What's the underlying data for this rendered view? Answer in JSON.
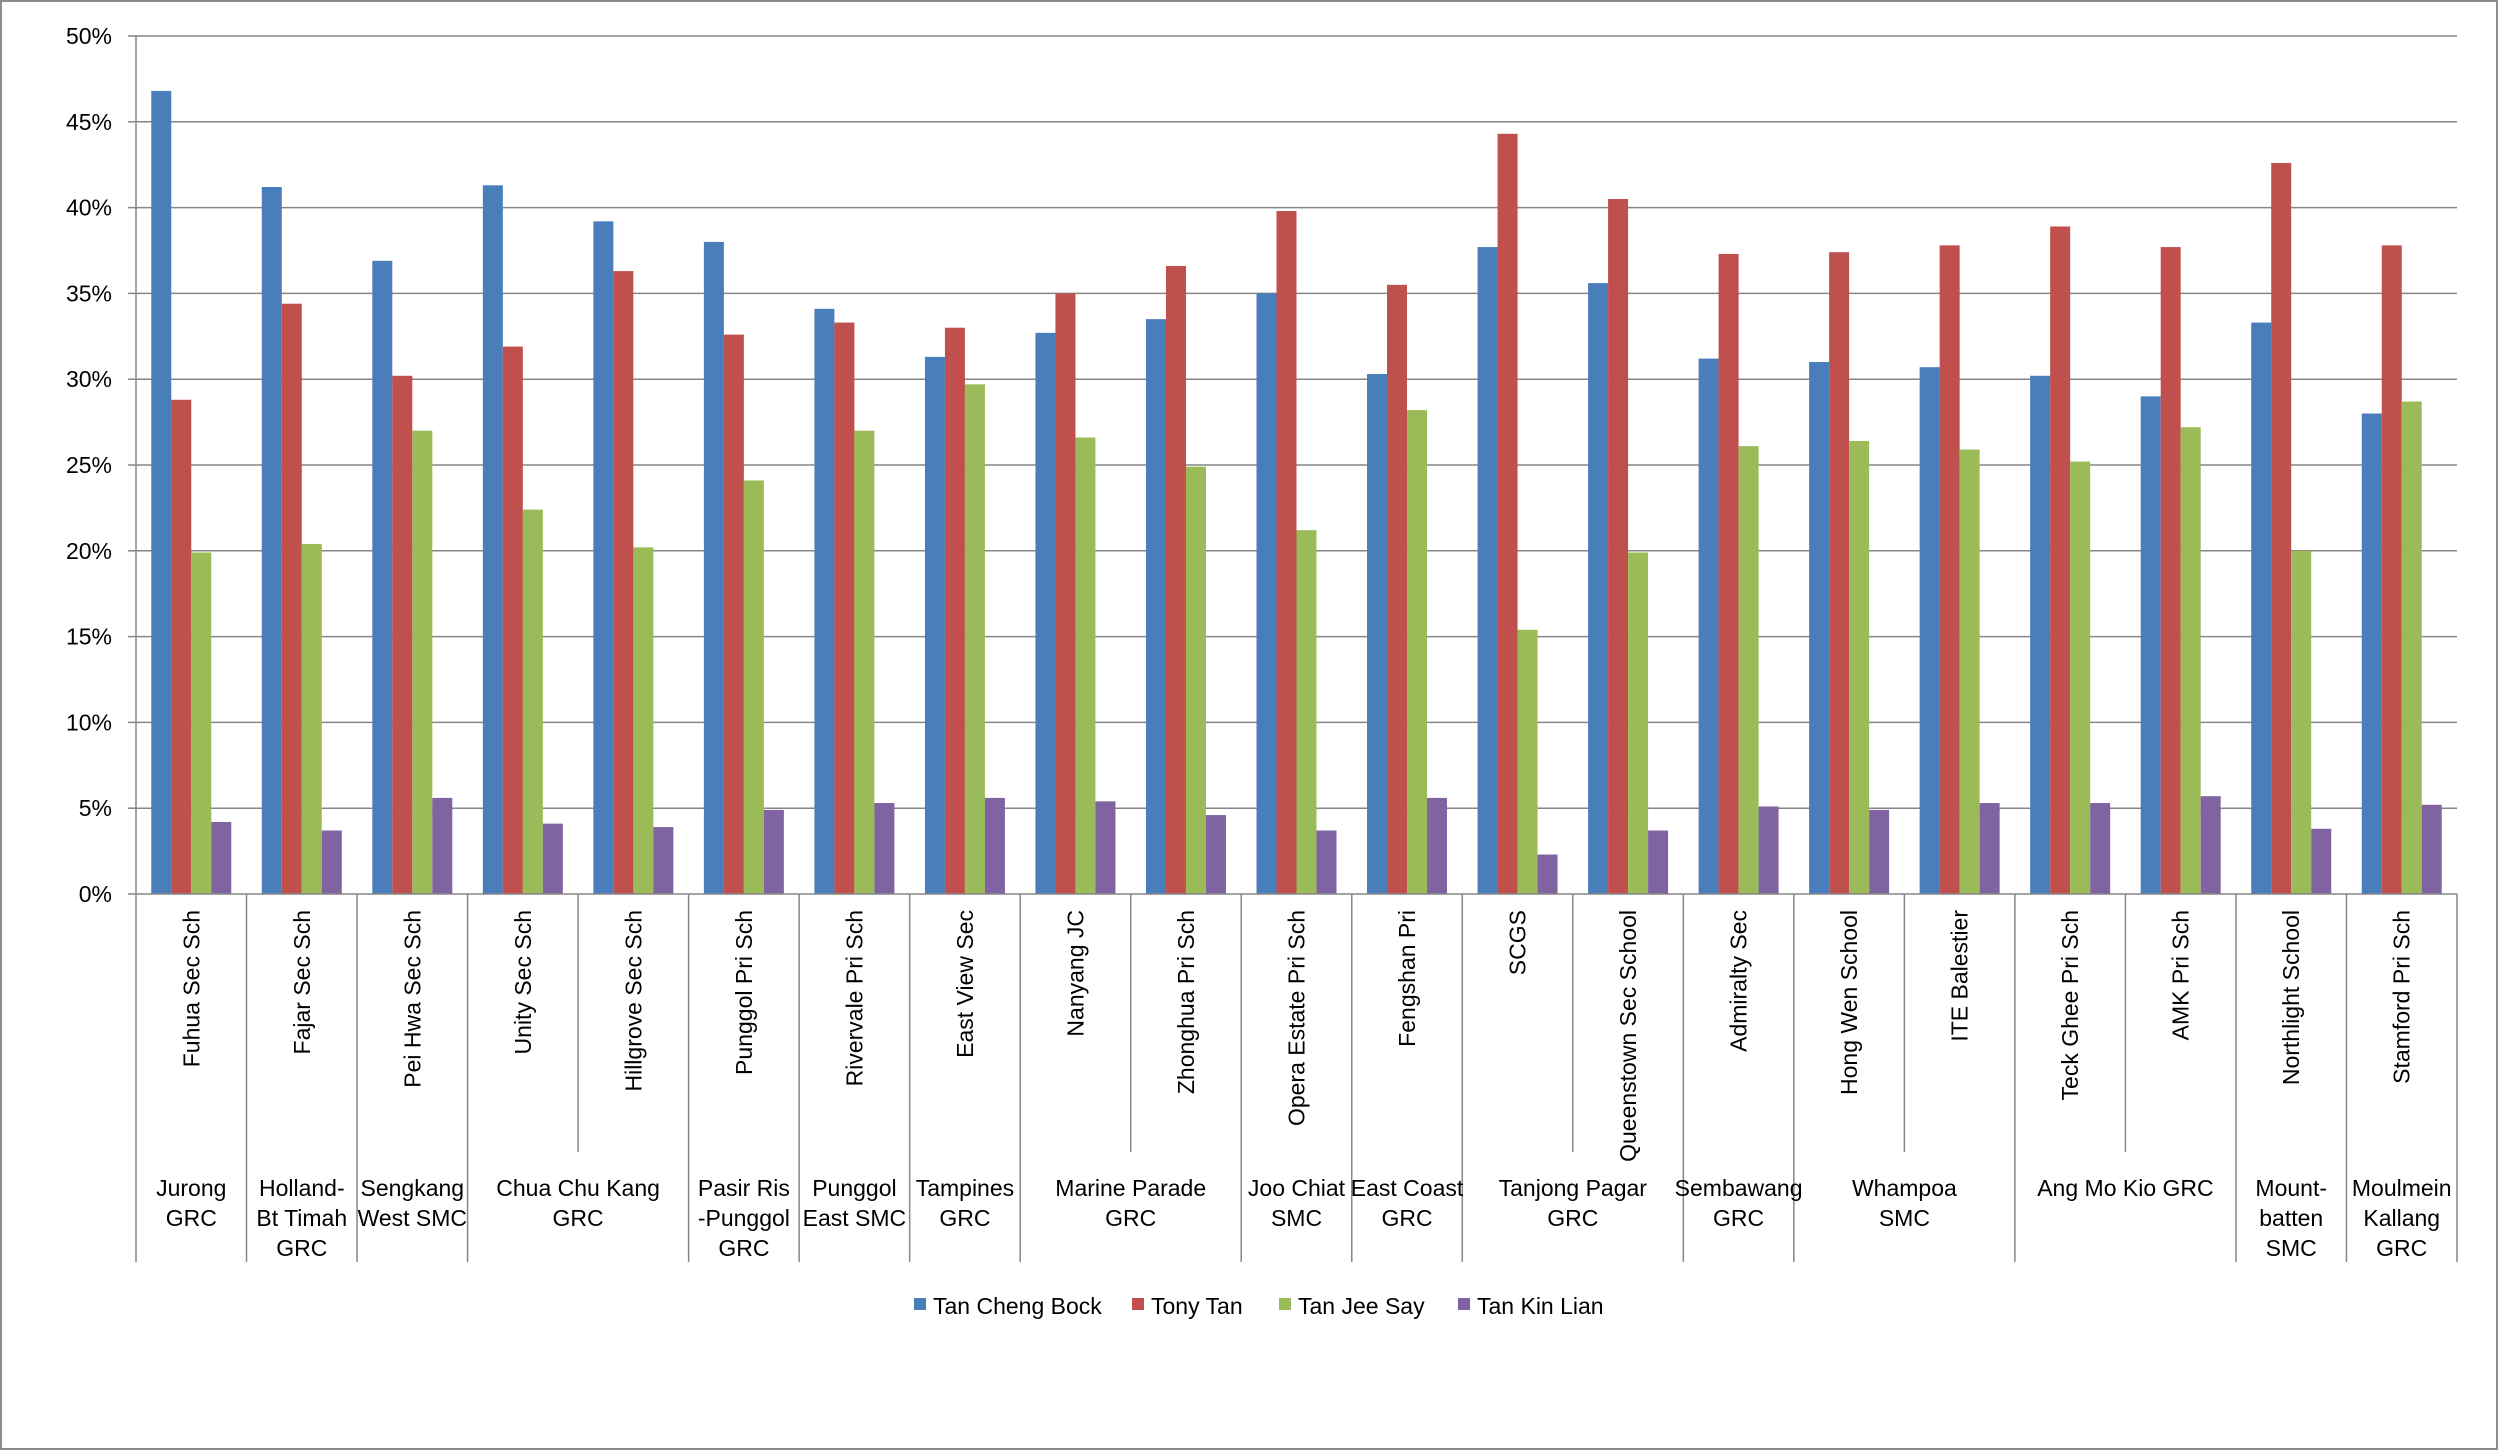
{
  "chart_data": {
    "type": "bar",
    "ylim": [
      0,
      50
    ],
    "y_ticks": [
      "0%",
      "5%",
      "10%",
      "15%",
      "20%",
      "25%",
      "30%",
      "35%",
      "40%",
      "45%",
      "50%"
    ],
    "grid": true,
    "legend_position": "bottom",
    "categories": [
      "Fuhua Sec Sch",
      "Fajar Sec Sch",
      "Pei Hwa Sec Sch",
      "Unity Sec Sch",
      "Hillgrove Sec Sch",
      "Punggol Pri Sch",
      "Rivervale Pri Sch",
      "East View Sec",
      "Nanyang JC",
      "Zhonghua Pri Sch",
      "Opera Estate Pri Sch",
      "Fengshan Pri",
      "SCGS",
      "Queenstown Sec School",
      "Admiralty Sec",
      "Hong Wen School",
      "ITE Balestier",
      "Teck Ghee Pri Sch",
      "AMK Pri Sch",
      "Northlight School",
      "Stamford Pri Sch"
    ],
    "groups": [
      {
        "lines": [
          "Jurong",
          "GRC"
        ],
        "start": 0,
        "end": 0
      },
      {
        "lines": [
          "Holland-",
          "Bt Timah",
          "GRC"
        ],
        "start": 1,
        "end": 1
      },
      {
        "lines": [
          "Sengkang",
          "West SMC"
        ],
        "start": 2,
        "end": 2
      },
      {
        "lines": [
          "Chua Chu Kang",
          "GRC"
        ],
        "start": 3,
        "end": 4
      },
      {
        "lines": [
          "Pasir Ris",
          "-Punggol",
          "GRC"
        ],
        "start": 5,
        "end": 5
      },
      {
        "lines": [
          "Punggol",
          "East SMC"
        ],
        "start": 6,
        "end": 6
      },
      {
        "lines": [
          "Tampines",
          "GRC"
        ],
        "start": 7,
        "end": 7
      },
      {
        "lines": [
          "Marine Parade",
          "GRC"
        ],
        "start": 8,
        "end": 9
      },
      {
        "lines": [
          "Joo Chiat",
          "SMC"
        ],
        "start": 10,
        "end": 10
      },
      {
        "lines": [
          "East Coast",
          "GRC"
        ],
        "start": 11,
        "end": 11
      },
      {
        "lines": [
          "Tanjong Pagar",
          "GRC"
        ],
        "start": 12,
        "end": 13
      },
      {
        "lines": [
          "Sembawang",
          "GRC"
        ],
        "start": 14,
        "end": 14
      },
      {
        "lines": [
          "Whampoa",
          "SMC"
        ],
        "start": 15,
        "end": 16
      },
      {
        "lines": [
          "Ang Mo Kio GRC"
        ],
        "start": 17,
        "end": 18
      },
      {
        "lines": [
          "Mount-",
          "batten",
          "SMC"
        ],
        "start": 19,
        "end": 19
      },
      {
        "lines": [
          "Moulmein",
          "Kallang",
          "GRC"
        ],
        "start": 20,
        "end": 20
      }
    ],
    "series": [
      {
        "name": "Tan Cheng Bock",
        "color": "#4A7EBB",
        "values": [
          46.8,
          41.2,
          36.9,
          41.3,
          39.2,
          38.0,
          34.1,
          31.3,
          32.7,
          33.5,
          35.0,
          30.3,
          37.7,
          35.6,
          31.2,
          31.0,
          30.7,
          30.2,
          29.0,
          33.3,
          28.0
        ]
      },
      {
        "name": "Tony Tan",
        "color": "#C0504D",
        "values": [
          28.8,
          34.4,
          30.2,
          31.9,
          36.3,
          32.6,
          33.3,
          33.0,
          35.0,
          36.6,
          39.8,
          35.5,
          44.3,
          40.5,
          37.3,
          37.4,
          37.8,
          38.9,
          37.7,
          42.6,
          37.8
        ]
      },
      {
        "name": "Tan Jee Say",
        "color": "#9BBB59",
        "values": [
          19.9,
          20.4,
          27.0,
          22.4,
          20.2,
          24.1,
          27.0,
          29.7,
          26.6,
          24.9,
          21.2,
          28.2,
          15.4,
          19.9,
          26.1,
          26.4,
          25.9,
          25.2,
          27.2,
          20.0,
          28.7
        ]
      },
      {
        "name": "Tan Kin Lian",
        "color": "#8064A2",
        "values": [
          4.2,
          3.7,
          5.6,
          4.1,
          3.9,
          4.9,
          5.3,
          5.6,
          5.4,
          4.6,
          3.7,
          5.6,
          2.3,
          3.7,
          5.1,
          4.9,
          5.3,
          5.3,
          5.7,
          3.8,
          5.2
        ]
      }
    ]
  }
}
